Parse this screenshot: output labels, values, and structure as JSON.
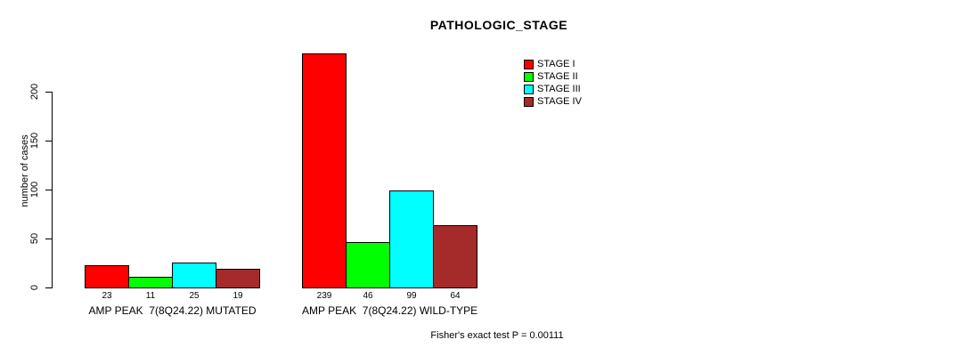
{
  "chart_data": {
    "type": "bar",
    "title": "PATHOLOGIC_STAGE",
    "ylabel": "number of cases",
    "xlabel": "",
    "categories": [
      "AMP PEAK  7(8Q24.22) MUTATED",
      "AMP PEAK  7(8Q24.22) WILD-TYPE"
    ],
    "series": [
      {
        "name": "STAGE I",
        "color": "#ff0000",
        "values": [
          23,
          239
        ]
      },
      {
        "name": "STAGE II",
        "color": "#00ff00",
        "values": [
          11,
          46
        ]
      },
      {
        "name": "STAGE III",
        "color": "#00ffff",
        "values": [
          25,
          99
        ]
      },
      {
        "name": "STAGE IV",
        "color": "#a52a2a",
        "values": [
          19,
          64
        ]
      }
    ],
    "y_ticks": [
      0,
      50,
      100,
      150,
      200
    ],
    "ylim": [
      0,
      245
    ],
    "grid": false,
    "legend_position": "top-right",
    "legend_entries": [
      "STAGE I",
      "STAGE II",
      "STAGE III",
      "STAGE IV"
    ],
    "annotation": "Fisher's exact test P = 0.00111"
  }
}
